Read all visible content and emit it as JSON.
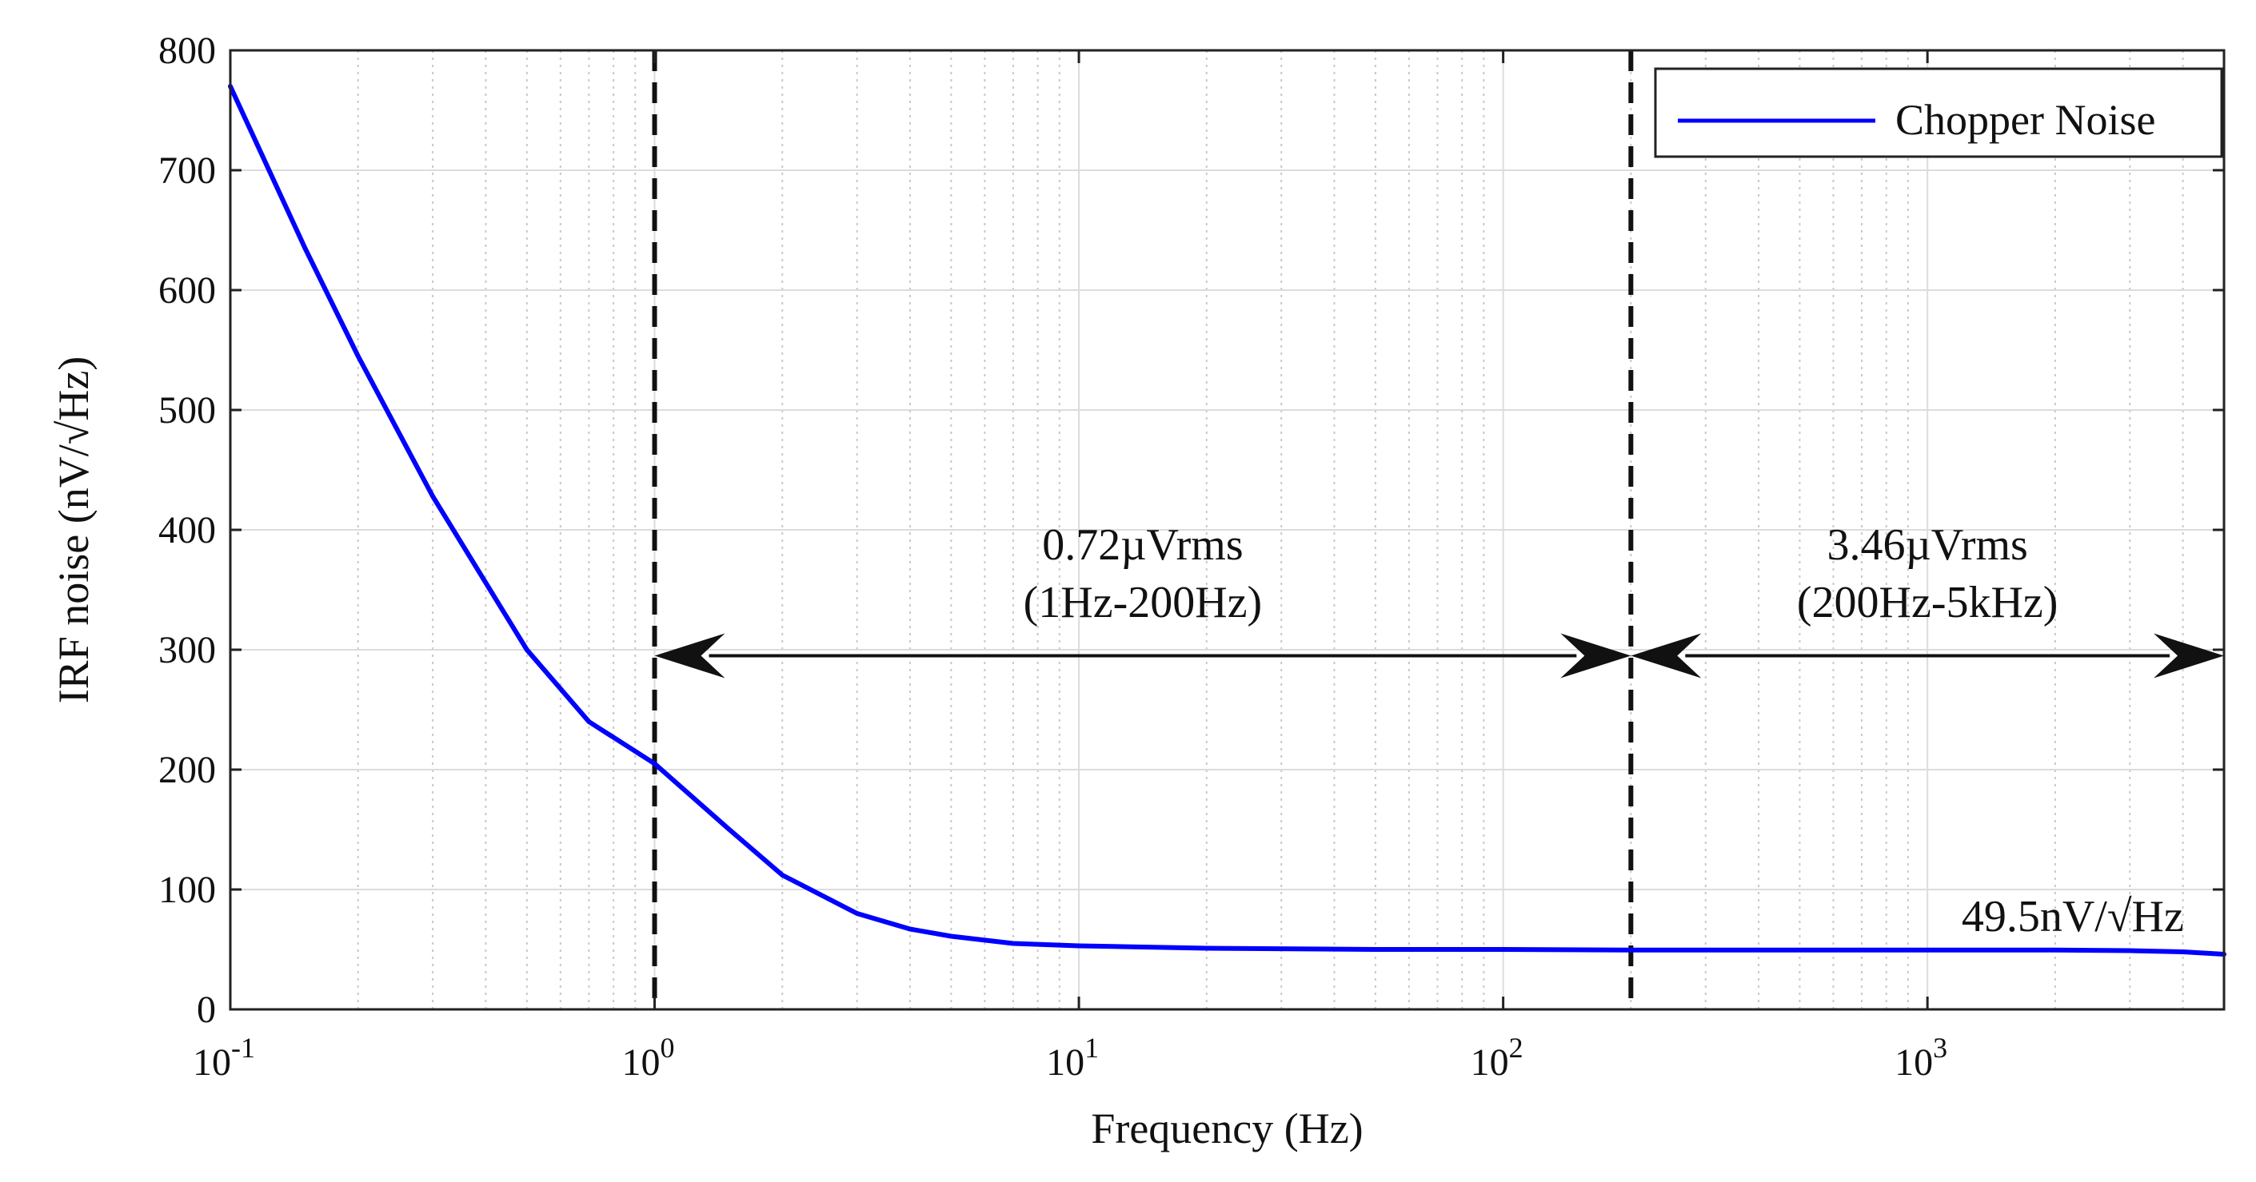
{
  "chart_data": {
    "type": "line",
    "title": "",
    "xlabel": "Frequency (Hz)",
    "ylabel": "IRF noise (nV/√Hz)",
    "xscale": "log",
    "xlim": [
      0.1,
      5000
    ],
    "ylim": [
      0,
      800
    ],
    "grid": true,
    "x_ticks": [
      {
        "value": 0.1,
        "base": "10",
        "exp": "-1"
      },
      {
        "value": 1,
        "base": "10",
        "exp": "0"
      },
      {
        "value": 10,
        "base": "10",
        "exp": "1"
      },
      {
        "value": 100,
        "base": "10",
        "exp": "2"
      },
      {
        "value": 1000,
        "base": "10",
        "exp": "3"
      }
    ],
    "y_ticks": [
      {
        "value": 0,
        "label": "0"
      },
      {
        "value": 100,
        "label": "100"
      },
      {
        "value": 200,
        "label": "200"
      },
      {
        "value": 300,
        "label": "300"
      },
      {
        "value": 400,
        "label": "400"
      },
      {
        "value": 500,
        "label": "500"
      },
      {
        "value": 600,
        "label": "600"
      },
      {
        "value": 700,
        "label": "700"
      },
      {
        "value": 800,
        "label": "800"
      }
    ],
    "series": [
      {
        "name": "Chopper Noise",
        "color": "#0000ff",
        "x": [
          0.1,
          0.15,
          0.2,
          0.3,
          0.5,
          0.7,
          1,
          1.5,
          2,
          3,
          4,
          5,
          7,
          10,
          20,
          50,
          100,
          200,
          500,
          1000,
          2000,
          3000,
          4000,
          5000
        ],
        "y": [
          770,
          635,
          545,
          428,
          300,
          240,
          205,
          150,
          112,
          80,
          67,
          61,
          55,
          53,
          51,
          50,
          50,
          49.5,
          49.5,
          49.5,
          49.5,
          49,
          48,
          46
        ]
      }
    ],
    "legend": {
      "position": "top-right",
      "entries": [
        "Chopper Noise"
      ]
    },
    "vlines": [
      {
        "x": 1,
        "style": "dashed"
      },
      {
        "x": 200,
        "style": "dashed"
      }
    ],
    "annotations": [
      {
        "id": "band1",
        "x_from": 1,
        "x_to": 200,
        "y": 295,
        "line1": "0.72µVrms",
        "line2": "(1Hz-200Hz)"
      },
      {
        "id": "band2",
        "x_from": 200,
        "x_to": 5000,
        "y": 295,
        "line1": "3.46µVrms",
        "line2": "(200Hz-5kHz)"
      },
      {
        "id": "floor",
        "x": 2200,
        "y": 72,
        "text": "49.5nV/√Hz"
      }
    ]
  }
}
